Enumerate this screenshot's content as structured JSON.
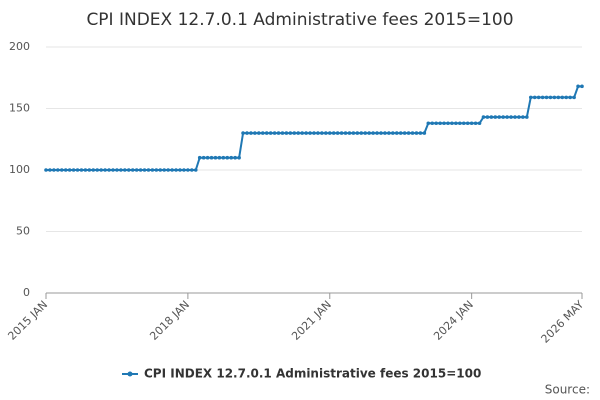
{
  "chart_data": {
    "type": "line",
    "title": "CPI INDEX 12.7.0.1 Administrative fees 2015=100",
    "source": "Source:",
    "categories": [
      "2015 JAN",
      null,
      null,
      null,
      null,
      null,
      null,
      null,
      null,
      null,
      null,
      null,
      null,
      null,
      null,
      null,
      null,
      null,
      null,
      null,
      null,
      null,
      null,
      null,
      null,
      null,
      null,
      null,
      null,
      null,
      null,
      null,
      null,
      null,
      null,
      null,
      "2018 JAN",
      null,
      null,
      null,
      null,
      null,
      null,
      null,
      null,
      null,
      null,
      null,
      null,
      null,
      null,
      null,
      null,
      null,
      null,
      null,
      null,
      null,
      null,
      null,
      null,
      null,
      null,
      null,
      null,
      null,
      null,
      null,
      null,
      null,
      null,
      null,
      "2021 JAN",
      null,
      null,
      null,
      null,
      null,
      null,
      null,
      null,
      null,
      null,
      null,
      null,
      null,
      null,
      null,
      null,
      null,
      null,
      null,
      null,
      null,
      null,
      null,
      null,
      null,
      null,
      null,
      null,
      null,
      null,
      null,
      null,
      null,
      null,
      null,
      "2024 JAN",
      null,
      null,
      null,
      null,
      null,
      null,
      null,
      null,
      null,
      null,
      null,
      null,
      null,
      null,
      null,
      null,
      null,
      null,
      null,
      null,
      null,
      null,
      null,
      null,
      null,
      null,
      null,
      "2026 MAY"
    ],
    "series": [
      {
        "name": "CPI INDEX 12.7.0.1 Administrative fees 2015=100",
        "color": "#1f78b4",
        "values": [
          100,
          100,
          100,
          100,
          100,
          100,
          100,
          100,
          100,
          100,
          100,
          100,
          100,
          100,
          100,
          100,
          100,
          100,
          100,
          100,
          100,
          100,
          100,
          100,
          100,
          100,
          100,
          100,
          100,
          100,
          100,
          100,
          100,
          100,
          100,
          100,
          100,
          100,
          100,
          110,
          110,
          110,
          110,
          110,
          110,
          110,
          110,
          110,
          110,
          110,
          130,
          130,
          130,
          130,
          130,
          130,
          130,
          130,
          130,
          130,
          130,
          130,
          130,
          130,
          130,
          130,
          130,
          130,
          130,
          130,
          130,
          130,
          130,
          130,
          130,
          130,
          130,
          130,
          130,
          130,
          130,
          130,
          130,
          130,
          130,
          130,
          130,
          130,
          130,
          130,
          130,
          130,
          130,
          130,
          130,
          130,
          130,
          138,
          138,
          138,
          138,
          138,
          138,
          138,
          138,
          138,
          138,
          138,
          138,
          138,
          138,
          143,
          143,
          143,
          143,
          143,
          143,
          143,
          143,
          143,
          143,
          143,
          143,
          159,
          159,
          159,
          159,
          159,
          159,
          159,
          159,
          159,
          159,
          159,
          159,
          168,
          168
        ]
      }
    ],
    "ylim": [
      0,
      200
    ],
    "yticks": [
      0,
      50,
      100,
      150,
      200
    ],
    "grid": true,
    "legend": "bottom"
  }
}
